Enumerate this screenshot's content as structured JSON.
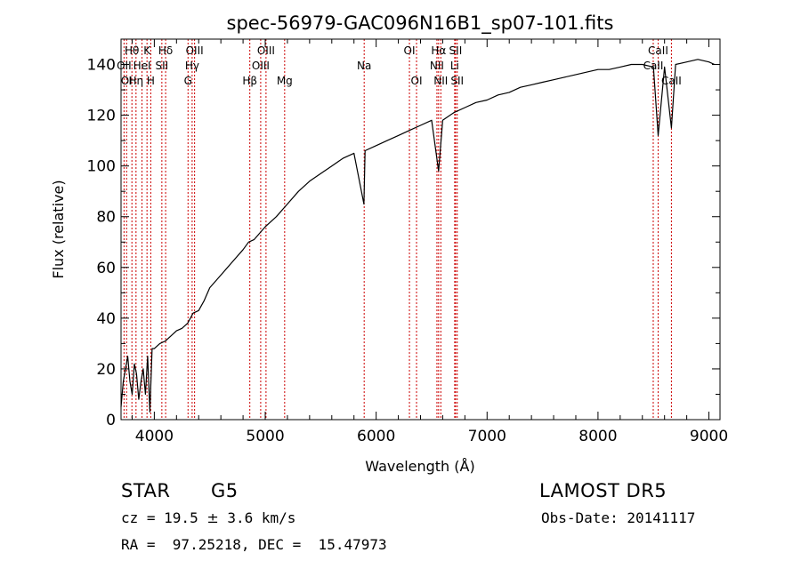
{
  "chart_data": {
    "type": "line",
    "title": "spec-56979-GAC096N16B1_sp07-101.fits",
    "xlabel": "Wavelength (Å)",
    "ylabel": "Flux (relative)",
    "xlim": [
      3700,
      9100
    ],
    "ylim": [
      0,
      150
    ],
    "xticks": [
      4000,
      5000,
      6000,
      7000,
      8000,
      9000
    ],
    "xtick_labels": [
      "4000",
      "5000",
      "6000",
      "7000",
      "8000",
      "9000"
    ],
    "yticks": [
      0,
      20,
      40,
      60,
      80,
      100,
      120,
      140
    ],
    "ytick_labels": [
      "0",
      "20",
      "40",
      "60",
      "80",
      "100",
      "120",
      "140"
    ],
    "grid": false,
    "line_color": "#000000",
    "marker_color": "#cc0000",
    "series": [
      {
        "x": [
          3700,
          3720,
          3740,
          3760,
          3780,
          3800,
          3820,
          3840,
          3860,
          3880,
          3900,
          3920,
          3940,
          3960,
          3980,
          4000,
          4050,
          4100,
          4150,
          4200,
          4250,
          4300,
          4350,
          4400,
          4450,
          4500,
          4600,
          4700,
          4800,
          4850,
          4900,
          5000,
          5100,
          5200,
          5300,
          5400,
          5500,
          5600,
          5700,
          5800,
          5890,
          5900,
          6000,
          6100,
          6200,
          6300,
          6400,
          6500,
          6563,
          6600,
          6700,
          6800,
          6900,
          7000,
          7100,
          7200,
          7300,
          7400,
          7500,
          7600,
          7700,
          7800,
          7900,
          8000,
          8100,
          8200,
          8300,
          8400,
          8500,
          8542,
          8600,
          8662,
          8700,
          8800,
          8900,
          9000,
          9050
        ],
        "y": [
          5,
          15,
          20,
          25,
          15,
          10,
          22,
          18,
          8,
          15,
          20,
          10,
          25,
          3,
          28,
          28,
          30,
          31,
          33,
          35,
          36,
          38,
          42,
          43,
          47,
          52,
          57,
          62,
          67,
          70,
          71,
          76,
          80,
          85,
          90,
          94,
          97,
          100,
          103,
          105,
          85,
          106,
          108,
          110,
          112,
          114,
          116,
          118,
          98,
          118,
          121,
          123,
          125,
          126,
          128,
          129,
          131,
          132,
          133,
          134,
          135,
          136,
          137,
          138,
          138,
          139,
          140,
          140,
          139,
          112,
          139,
          115,
          140,
          141,
          142,
          141,
          140
        ]
      }
    ],
    "lines": [
      {
        "wavelength": 3727,
        "label": "OII",
        "row": 1
      },
      {
        "wavelength": 3750,
        "label": "OI",
        "row": 2
      },
      {
        "wavelength": 3798,
        "label": "Hθ",
        "row": 0
      },
      {
        "wavelength": 3835,
        "label": "Hη",
        "row": 2
      },
      {
        "wavelength": 3889,
        "label": "HeI",
        "row": 1
      },
      {
        "wavelength": 3934,
        "label": "K",
        "row": 0
      },
      {
        "wavelength": 3968,
        "label": "H",
        "row": 2
      },
      {
        "wavelength": 4068,
        "label": "SII",
        "row": 1
      },
      {
        "wavelength": 4102,
        "label": "Hδ",
        "row": 0
      },
      {
        "wavelength": 4304,
        "label": "G",
        "row": 2
      },
      {
        "wavelength": 4341,
        "label": "Hγ",
        "row": 1
      },
      {
        "wavelength": 4363,
        "label": "OIII",
        "row": 0
      },
      {
        "wavelength": 4861,
        "label": "Hβ",
        "row": 2
      },
      {
        "wavelength": 4959,
        "label": "OIII",
        "row": 1
      },
      {
        "wavelength": 5007,
        "label": "OIII",
        "row": 0
      },
      {
        "wavelength": 5175,
        "label": "Mg",
        "row": 2
      },
      {
        "wavelength": 5892,
        "label": "Na",
        "row": 1
      },
      {
        "wavelength": 6300,
        "label": "OI",
        "row": 0
      },
      {
        "wavelength": 6364,
        "label": "OI",
        "row": 2
      },
      {
        "wavelength": 6548,
        "label": "NII",
        "row": 1
      },
      {
        "wavelength": 6563,
        "label": "Hα",
        "row": 0
      },
      {
        "wavelength": 6583,
        "label": "NII",
        "row": 2
      },
      {
        "wavelength": 6708,
        "label": "Li",
        "row": 1
      },
      {
        "wavelength": 6716,
        "label": "SII",
        "row": 0
      },
      {
        "wavelength": 6731,
        "label": "SII",
        "row": 2
      },
      {
        "wavelength": 8498,
        "label": "CaII",
        "row": 1
      },
      {
        "wavelength": 8542,
        "label": "CaII",
        "row": 0
      },
      {
        "wavelength": 8662,
        "label": "CaII",
        "row": 2
      }
    ]
  },
  "info": {
    "object_class": "STAR",
    "subclass": "G5",
    "survey": "LAMOST DR5",
    "cz_prefix": "cz = 19.5 ",
    "cz_pm": "±",
    "cz_suffix": " 3.6 km/s",
    "obs_date": "Obs-Date: 20141117",
    "radec": "RA =  97.25218, DEC =  15.47973"
  }
}
